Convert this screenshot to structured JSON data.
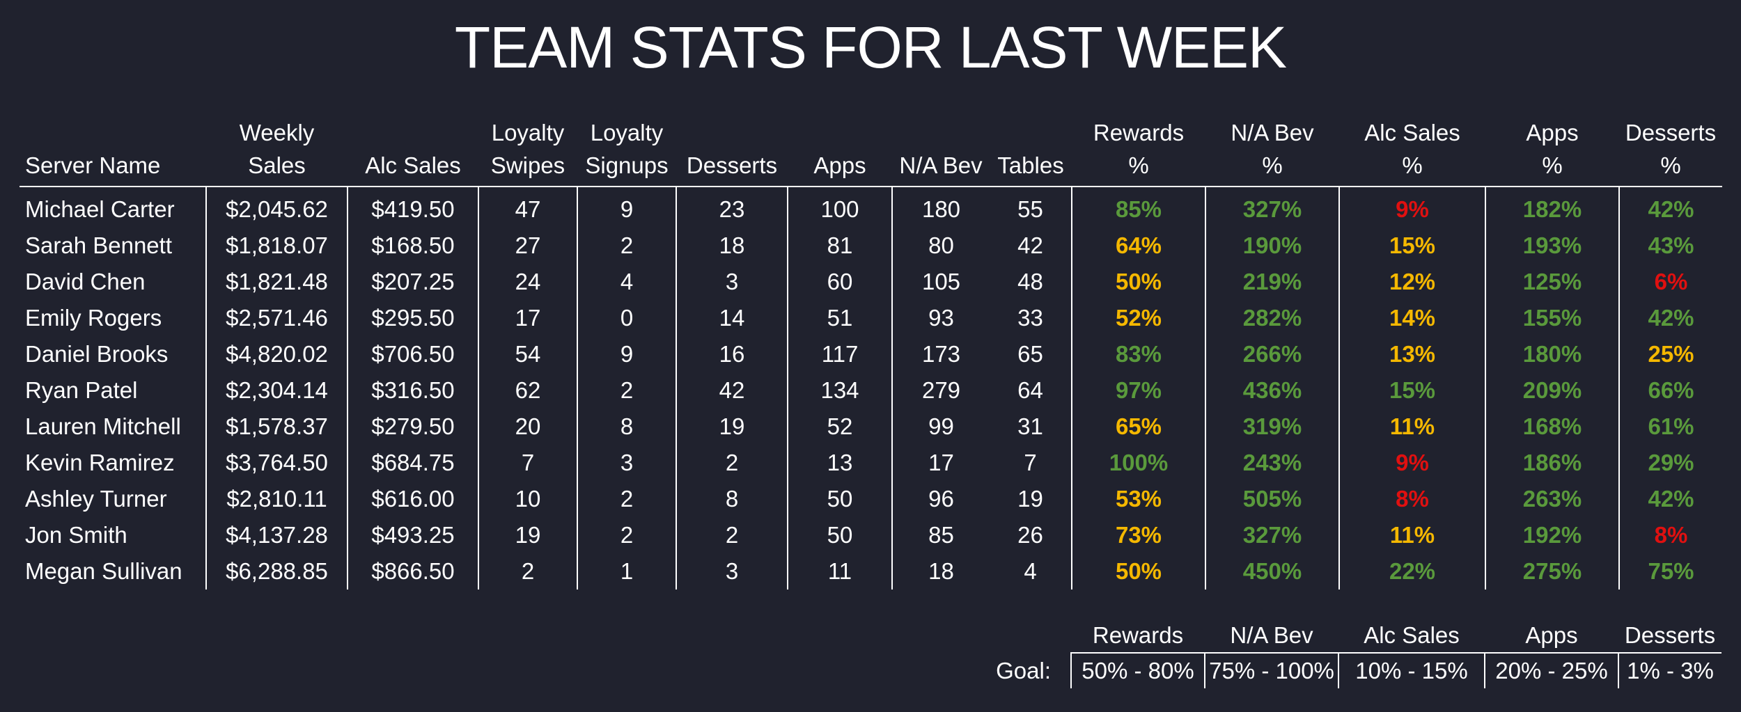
{
  "title": "TEAM STATS FOR LAST WEEK",
  "colors": {
    "background": "#20222e",
    "text": "#ffffff",
    "good": "#5a9a3c",
    "warn": "#f5b800",
    "bad": "#e01010"
  },
  "headers": {
    "server_name": "Server Name",
    "weekly_sales": [
      "Weekly",
      "Sales"
    ],
    "alc_sales": "Alc Sales",
    "loyalty_swipes": [
      "Loyalty",
      "Swipes"
    ],
    "loyalty_signups": [
      "Loyalty",
      "Signups"
    ],
    "desserts": "Desserts",
    "apps": "Apps",
    "na_bev": "N/A Bev",
    "tables": "Tables",
    "rewards_pct": [
      "Rewards",
      "%"
    ],
    "na_bev_pct": [
      "N/A Bev",
      "%"
    ],
    "alc_sales_pct": [
      "Alc Sales",
      "%"
    ],
    "apps_pct": [
      "Apps",
      "%"
    ],
    "desserts_pct": [
      "Desserts",
      "%"
    ]
  },
  "rows": [
    {
      "name": "Michael Carter",
      "sales": "$2,045.62",
      "alc": "$419.50",
      "swipes": "47",
      "signups": "9",
      "desserts": "23",
      "apps": "100",
      "nabev": "180",
      "tables": "55",
      "rewards": {
        "v": "85%",
        "s": "good"
      },
      "nabev_pct": {
        "v": "327%",
        "s": "good"
      },
      "alc_pct": {
        "v": "9%",
        "s": "bad"
      },
      "apps_pct": {
        "v": "182%",
        "s": "good"
      },
      "desserts_pct": {
        "v": "42%",
        "s": "good"
      }
    },
    {
      "name": "Sarah Bennett",
      "sales": "$1,818.07",
      "alc": "$168.50",
      "swipes": "27",
      "signups": "2",
      "desserts": "18",
      "apps": "81",
      "nabev": "80",
      "tables": "42",
      "rewards": {
        "v": "64%",
        "s": "warn"
      },
      "nabev_pct": {
        "v": "190%",
        "s": "good"
      },
      "alc_pct": {
        "v": "15%",
        "s": "warn"
      },
      "apps_pct": {
        "v": "193%",
        "s": "good"
      },
      "desserts_pct": {
        "v": "43%",
        "s": "good"
      }
    },
    {
      "name": "David Chen",
      "sales": "$1,821.48",
      "alc": "$207.25",
      "swipes": "24",
      "signups": "4",
      "desserts": "3",
      "apps": "60",
      "nabev": "105",
      "tables": "48",
      "rewards": {
        "v": "50%",
        "s": "warn"
      },
      "nabev_pct": {
        "v": "219%",
        "s": "good"
      },
      "alc_pct": {
        "v": "12%",
        "s": "warn"
      },
      "apps_pct": {
        "v": "125%",
        "s": "good"
      },
      "desserts_pct": {
        "v": "6%",
        "s": "bad"
      }
    },
    {
      "name": "Emily Rogers",
      "sales": "$2,571.46",
      "alc": "$295.50",
      "swipes": "17",
      "signups": "0",
      "desserts": "14",
      "apps": "51",
      "nabev": "93",
      "tables": "33",
      "rewards": {
        "v": "52%",
        "s": "warn"
      },
      "nabev_pct": {
        "v": "282%",
        "s": "good"
      },
      "alc_pct": {
        "v": "14%",
        "s": "warn"
      },
      "apps_pct": {
        "v": "155%",
        "s": "good"
      },
      "desserts_pct": {
        "v": "42%",
        "s": "good"
      }
    },
    {
      "name": "Daniel Brooks",
      "sales": "$4,820.02",
      "alc": "$706.50",
      "swipes": "54",
      "signups": "9",
      "desserts": "16",
      "apps": "117",
      "nabev": "173",
      "tables": "65",
      "rewards": {
        "v": "83%",
        "s": "good"
      },
      "nabev_pct": {
        "v": "266%",
        "s": "good"
      },
      "alc_pct": {
        "v": "13%",
        "s": "warn"
      },
      "apps_pct": {
        "v": "180%",
        "s": "good"
      },
      "desserts_pct": {
        "v": "25%",
        "s": "warn"
      }
    },
    {
      "name": "Ryan Patel",
      "sales": "$2,304.14",
      "alc": "$316.50",
      "swipes": "62",
      "signups": "2",
      "desserts": "42",
      "apps": "134",
      "nabev": "279",
      "tables": "64",
      "rewards": {
        "v": "97%",
        "s": "good"
      },
      "nabev_pct": {
        "v": "436%",
        "s": "good"
      },
      "alc_pct": {
        "v": "15%",
        "s": "good"
      },
      "apps_pct": {
        "v": "209%",
        "s": "good"
      },
      "desserts_pct": {
        "v": "66%",
        "s": "good"
      }
    },
    {
      "name": "Lauren Mitchell",
      "sales": "$1,578.37",
      "alc": "$279.50",
      "swipes": "20",
      "signups": "8",
      "desserts": "19",
      "apps": "52",
      "nabev": "99",
      "tables": "31",
      "rewards": {
        "v": "65%",
        "s": "warn"
      },
      "nabev_pct": {
        "v": "319%",
        "s": "good"
      },
      "alc_pct": {
        "v": "11%",
        "s": "warn"
      },
      "apps_pct": {
        "v": "168%",
        "s": "good"
      },
      "desserts_pct": {
        "v": "61%",
        "s": "good"
      }
    },
    {
      "name": "Kevin Ramirez",
      "sales": "$3,764.50",
      "alc": "$684.75",
      "swipes": "7",
      "signups": "3",
      "desserts": "2",
      "apps": "13",
      "nabev": "17",
      "tables": "7",
      "rewards": {
        "v": "100%",
        "s": "good"
      },
      "nabev_pct": {
        "v": "243%",
        "s": "good"
      },
      "alc_pct": {
        "v": "9%",
        "s": "bad"
      },
      "apps_pct": {
        "v": "186%",
        "s": "good"
      },
      "desserts_pct": {
        "v": "29%",
        "s": "good"
      }
    },
    {
      "name": "Ashley Turner",
      "sales": "$2,810.11",
      "alc": "$616.00",
      "swipes": "10",
      "signups": "2",
      "desserts": "8",
      "apps": "50",
      "nabev": "96",
      "tables": "19",
      "rewards": {
        "v": "53%",
        "s": "warn"
      },
      "nabev_pct": {
        "v": "505%",
        "s": "good"
      },
      "alc_pct": {
        "v": "8%",
        "s": "bad"
      },
      "apps_pct": {
        "v": "263%",
        "s": "good"
      },
      "desserts_pct": {
        "v": "42%",
        "s": "good"
      }
    },
    {
      "name": "Jon Smith",
      "sales": "$4,137.28",
      "alc": "$493.25",
      "swipes": "19",
      "signups": "2",
      "desserts": "2",
      "apps": "50",
      "nabev": "85",
      "tables": "26",
      "rewards": {
        "v": "73%",
        "s": "warn"
      },
      "nabev_pct": {
        "v": "327%",
        "s": "good"
      },
      "alc_pct": {
        "v": "11%",
        "s": "warn"
      },
      "apps_pct": {
        "v": "192%",
        "s": "good"
      },
      "desserts_pct": {
        "v": "8%",
        "s": "bad"
      }
    },
    {
      "name": "Megan Sullivan",
      "sales": "$6,288.85",
      "alc": "$866.50",
      "swipes": "2",
      "signups": "1",
      "desserts": "3",
      "apps": "11",
      "nabev": "18",
      "tables": "4",
      "rewards": {
        "v": "50%",
        "s": "warn"
      },
      "nabev_pct": {
        "v": "450%",
        "s": "good"
      },
      "alc_pct": {
        "v": "22%",
        "s": "good"
      },
      "apps_pct": {
        "v": "275%",
        "s": "good"
      },
      "desserts_pct": {
        "v": "75%",
        "s": "good"
      }
    }
  ],
  "goal": {
    "label": "Goal:",
    "headers": [
      "Rewards",
      "N/A Bev",
      "Alc Sales",
      "Apps",
      "Desserts"
    ],
    "values": [
      "50% - 80%",
      "75% - 100%",
      "10% - 15%",
      "20% - 25%",
      "1% - 3%"
    ]
  }
}
